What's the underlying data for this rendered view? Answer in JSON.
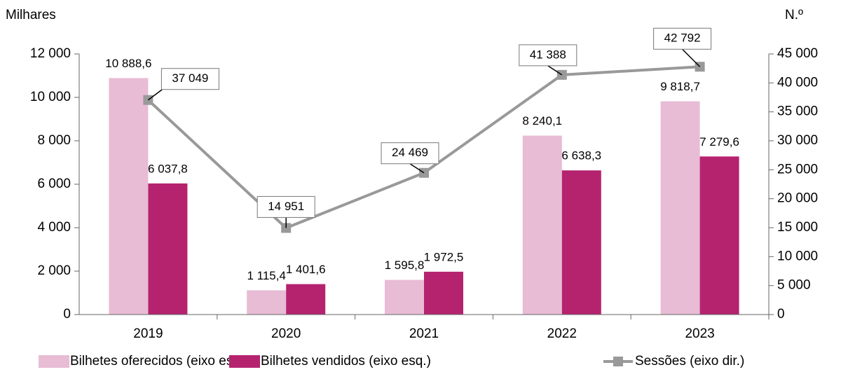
{
  "chart_data": {
    "type": "bar",
    "axis_label_left": "Milhares",
    "axis_label_right": "N.º",
    "categories": [
      "2019",
      "2020",
      "2021",
      "2022",
      "2023"
    ],
    "series": [
      {
        "name": "Bilhetes oferecidos (eixo esq.)",
        "color": "#e8bcd4",
        "type": "bar",
        "values": [
          10888.6,
          1115.4,
          1595.8,
          8240.1,
          9818.7
        ],
        "value_labels": [
          "10 888,6",
          "1 115,4",
          "1 595,8",
          "8 240,1",
          "9 818,7"
        ]
      },
      {
        "name": "Bilhetes vendidos (eixo esq.)",
        "color": "#b5236f",
        "type": "bar",
        "values": [
          6037.8,
          1401.6,
          1972.5,
          6638.3,
          7279.6
        ],
        "value_labels": [
          "6 037,8",
          "1 401,6",
          "1 972,5",
          "6 638,3",
          "7 279,6"
        ]
      },
      {
        "name": "Sessões (eixo dir.)",
        "color": "#999999",
        "type": "line",
        "axis": "y2",
        "values": [
          37049,
          14951,
          24469,
          41388,
          42792
        ],
        "value_labels": [
          "37 049",
          "14 951",
          "24 469",
          "41 388",
          "42 792"
        ]
      }
    ],
    "ylim": [
      0,
      12000
    ],
    "yticks": [
      0,
      {
        "value": 2000,
        "label": "2 000"
      },
      {
        "value": 4000,
        "label": "4 000"
      },
      {
        "value": 6000,
        "label": "6 000"
      },
      {
        "value": 8000,
        "label": "8 000"
      },
      {
        "value": 10000,
        "label": "10 000"
      },
      {
        "value": 12000,
        "label": "12 000"
      }
    ],
    "y2lim": [
      0,
      45000
    ],
    "y2ticks": [
      0,
      {
        "value": 5000,
        "label": "5 000"
      },
      {
        "value": 10000,
        "label": "10 000"
      },
      {
        "value": 15000,
        "label": "15 000"
      },
      {
        "value": 20000,
        "label": "20 000"
      },
      {
        "value": 25000,
        "label": "25 000"
      },
      {
        "value": 30000,
        "label": "30 000"
      },
      {
        "value": 35000,
        "label": "35 000"
      },
      {
        "value": 40000,
        "label": "40 000"
      },
      {
        "value": 45000,
        "label": "45 000"
      }
    ],
    "legend": "bottom"
  }
}
